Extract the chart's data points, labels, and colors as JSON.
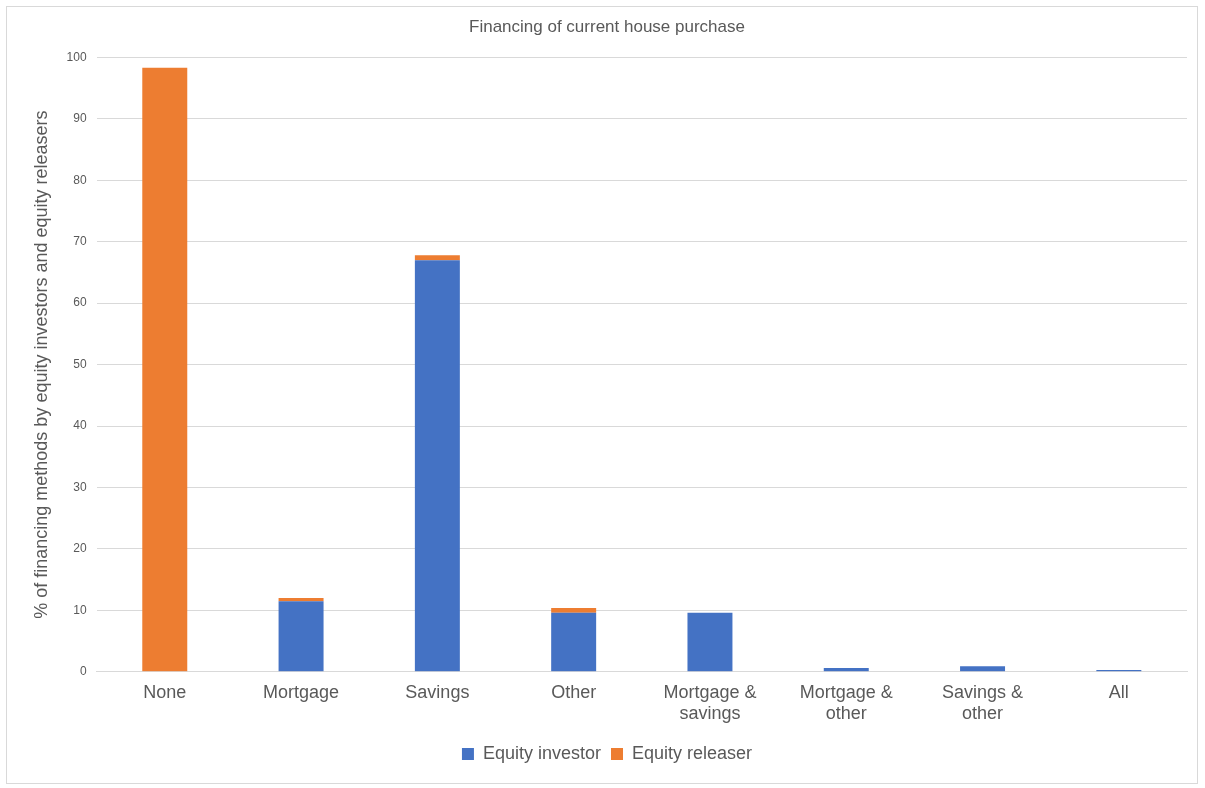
{
  "chart_data": {
    "type": "bar",
    "title": "Financing of current house purchase",
    "ylabel": "% of financing methods by equity investors and equity releasers",
    "categories": [
      "None",
      "Mortgage",
      "Savings",
      "Other",
      "Mortgage & savings",
      "Mortgage & other",
      "Savings & other",
      "All"
    ],
    "stacked": true,
    "series": [
      {
        "name": "Equity investor",
        "color": "#4472c4",
        "values": [
          0,
          11.5,
          67,
          9.6,
          9.6,
          0.6,
          0.9,
          0.3
        ]
      },
      {
        "name": "Equity releaser",
        "color": "#ed7d31",
        "values": [
          98.3,
          0.5,
          0.8,
          0.8,
          0,
          0,
          0,
          0
        ]
      }
    ],
    "ylim": [
      0,
      100
    ],
    "yticks": [
      0,
      10,
      20,
      30,
      40,
      50,
      60,
      70,
      80,
      90,
      100
    ],
    "grid": "y",
    "legend": "bottom"
  }
}
